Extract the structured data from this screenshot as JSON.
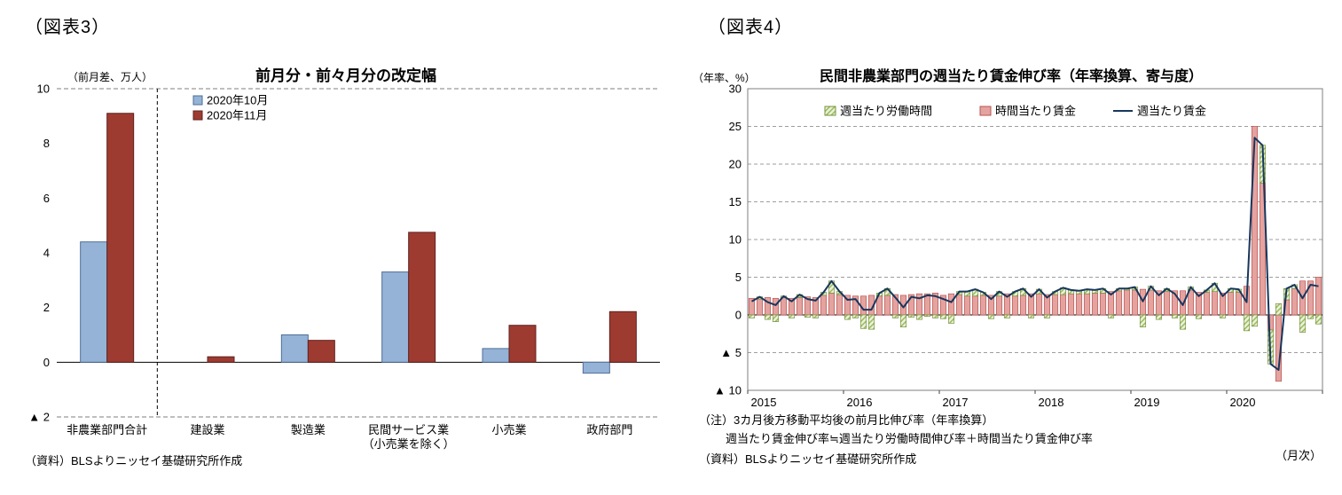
{
  "figure3": {
    "label": "（図表3）",
    "unit": "（前月差、万人）",
    "source": "（資料）BLSよりニッセイ基礎研究所作成"
  },
  "figure4": {
    "label": "（図表4）",
    "unit": "（年率、%）",
    "note_line1": "（注）3カ月後方移動平均後の前月比伸び率（年率換算）",
    "note_line2": "週当たり賃金伸び率≒週当たり労働時間伸び率＋時間当たり賃金伸び率",
    "source": "（資料）BLSよりニッセイ基礎研究所作成",
    "frequency": "（月次）"
  },
  "chart_data": [
    {
      "type": "bar",
      "title": "前月分・前々月分の改定幅",
      "ylabel": "前月差、万人",
      "categories": [
        "非農業部門合計",
        "建設業",
        "製造業",
        "民間サービス業（小売業を除く）",
        "小売業",
        "政府部門"
      ],
      "category_lines": [
        [
          "非農業部門合計"
        ],
        [
          "建設業"
        ],
        [
          "製造業"
        ],
        [
          "民間サービス業",
          "（小売業を除く）"
        ],
        [
          "小売業"
        ],
        [
          "政府部門"
        ]
      ],
      "series": [
        {
          "name": "2020年10月",
          "color": "#95B3D7",
          "border": "#4F6E96",
          "values": [
            4.4,
            0.0,
            1.0,
            3.3,
            0.5,
            -0.4
          ]
        },
        {
          "name": "2020年11月",
          "color": "#9E3B31",
          "border": "#5F2320",
          "values": [
            9.1,
            0.2,
            0.8,
            4.75,
            1.35,
            1.85
          ]
        }
      ],
      "ylim": [
        -2,
        10
      ],
      "yticks": [
        10,
        8,
        6,
        4,
        2,
        0,
        -2
      ],
      "negative_marker": "▲",
      "grid": "top-bottom-dashed, solid zero line, dashed vertical separator after first category",
      "legend_position": "upper-left-inside"
    },
    {
      "type": "stacked-bar-line",
      "title": "民間非農業部門の週当たり賃金伸び率（年率換算、寄与度）",
      "ylabel": "年率、%",
      "x_years": [
        2015,
        2016,
        2017,
        2018,
        2019,
        2020
      ],
      "x_frequency": "monthly",
      "bar_series": [
        {
          "name": "週当たり労働時間",
          "style": "hatch-green",
          "color": "#D7E4BC",
          "hatch_bg": "#EBF1DE",
          "hatch_line": "#94B64E",
          "border": "#76933C",
          "values": [
            -0.4,
            0.3,
            -0.6,
            -0.9,
            0.2,
            -0.4,
            0.4,
            -0.3,
            -0.4,
            0.4,
            1.6,
            0.4,
            -0.6,
            -0.4,
            -1.8,
            -1.9,
            0.4,
            0.9,
            -0.4,
            -1.6,
            -0.3,
            -0.6,
            -0.2,
            -0.4,
            -0.5,
            -1.1,
            0.4,
            0.6,
            0.9,
            0.4,
            -0.5,
            0.6,
            -0.4,
            0.6,
            0.9,
            -0.4,
            0.6,
            -0.4,
            0.4,
            0.9,
            0.5,
            0.4,
            0.6,
            0.4,
            0.6,
            -0.4,
            0.3,
            0.2,
            0.4,
            -1.6,
            0.5,
            -0.6,
            0.4,
            -0.4,
            -1.9,
            0.4,
            -0.5,
            0.3,
            1.1,
            -0.4,
            0.5,
            0.4,
            -2.1,
            -1.5,
            5.0,
            -4.5,
            1.5,
            1.5,
            0.5,
            -2.3,
            -0.5,
            -1.2
          ]
        },
        {
          "name": "時間当たり賃金",
          "style": "solid-pink",
          "color": "#E5A3A0",
          "border": "#B65551",
          "values": [
            2.2,
            2.1,
            2.3,
            2.2,
            2.3,
            2.2,
            2.3,
            2.4,
            2.3,
            2.6,
            2.9,
            2.7,
            2.6,
            2.5,
            2.5,
            2.6,
            2.5,
            2.6,
            2.7,
            2.6,
            2.7,
            2.8,
            2.8,
            2.9,
            2.6,
            2.8,
            2.7,
            2.5,
            2.5,
            2.6,
            2.6,
            2.5,
            2.8,
            2.5,
            2.6,
            2.8,
            2.8,
            2.7,
            2.7,
            2.7,
            2.8,
            2.8,
            2.8,
            2.9,
            2.9,
            3.1,
            3.2,
            3.3,
            3.3,
            3.4,
            3.3,
            3.2,
            3.1,
            3.2,
            3.2,
            3.3,
            3.0,
            3.0,
            3.1,
            2.9,
            3.0,
            3.0,
            3.8,
            25.0,
            17.5,
            -2.0,
            -8.8,
            2.0,
            3.5,
            4.5,
            4.5,
            5.0
          ]
        }
      ],
      "line_series": {
        "name": "週当たり賃金",
        "color": "#17375E",
        "values": [
          1.8,
          2.4,
          1.7,
          1.3,
          2.5,
          1.8,
          2.7,
          2.1,
          1.9,
          3.0,
          4.5,
          3.1,
          2.0,
          2.1,
          0.7,
          0.7,
          2.9,
          3.5,
          2.3,
          1.0,
          2.4,
          2.2,
          2.6,
          2.5,
          2.1,
          1.7,
          3.1,
          3.1,
          3.4,
          3.0,
          2.1,
          3.1,
          2.4,
          3.1,
          3.5,
          2.4,
          3.4,
          2.3,
          3.1,
          3.6,
          3.3,
          3.2,
          3.4,
          3.3,
          3.5,
          2.7,
          3.5,
          3.5,
          3.7,
          1.8,
          3.8,
          2.6,
          3.5,
          2.8,
          1.3,
          3.7,
          2.5,
          3.3,
          4.2,
          2.5,
          3.5,
          3.4,
          1.7,
          23.5,
          22.5,
          -6.5,
          -7.3,
          3.5,
          4.0,
          2.2,
          4.0,
          3.8
        ]
      },
      "ylim": [
        -10,
        30
      ],
      "yticks": [
        30,
        25,
        20,
        15,
        10,
        5,
        0,
        -5,
        -10
      ],
      "negative_marker": "▲",
      "grid": "dashed horizontal gridlines, solid zero line, bordered plot area",
      "legend_position": "top-inside-horizontal"
    }
  ]
}
